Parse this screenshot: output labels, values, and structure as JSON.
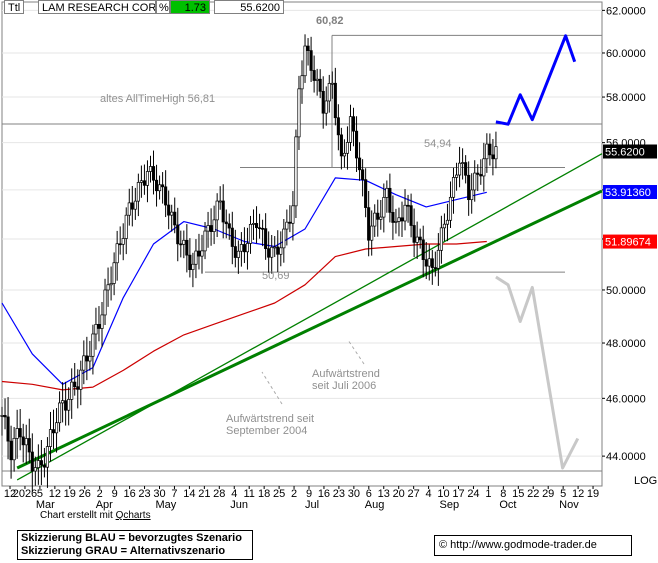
{
  "header": {
    "ticker": "Ttl",
    "name": "LAM RESEARCH CORP",
    "pct_symbol": "%",
    "pct_change": "1.73",
    "last_price": "55.6200"
  },
  "credit": {
    "prefix": "Chart erstellt mit ",
    "tool": "Qcharts"
  },
  "legend_box": {
    "line1": "Skizzierung BLAU = bevorzugtes Szenario",
    "line2": "Skizzierung GRAU = Alternativszenario"
  },
  "source": "© http://www.godmode-trader.de",
  "colors": {
    "accent_green": "#00c000",
    "blue": "#0000ff",
    "red": "#ff0000",
    "trend": "#008000",
    "grey": "#c8c8c8"
  },
  "chart_data": {
    "type": "candlestick",
    "y_axis": {
      "min": 43.0,
      "max": 62.4,
      "position": "right",
      "ticks": [
        "62.0000",
        "60.0000",
        "58.0000",
        "56.0000",
        "54.0000",
        "52.0000",
        "50.0000",
        "48.0000",
        "46.0000",
        "44.0000"
      ],
      "scale_label": "LOG"
    },
    "x_axis": {
      "day_labels": [
        "12",
        "2026",
        "5",
        "12",
        "19",
        "26",
        "2",
        "9",
        "16",
        "23",
        "30",
        "7",
        "14",
        "21",
        "28",
        "4",
        "11",
        "18",
        "25",
        "2",
        "9",
        "16",
        "23",
        "30",
        "6",
        "13",
        "20",
        "27",
        "4",
        "10",
        "17",
        "24",
        "1",
        "8",
        "15",
        "22",
        "29",
        "5",
        "12",
        "19"
      ],
      "month_labels": [
        {
          "label": "Mar",
          "at": "5"
        },
        {
          "label": "Apr",
          "at": "2"
        },
        {
          "label": "May",
          "at": "30"
        },
        {
          "label": "Jun",
          "at": "4"
        },
        {
          "label": "Jul",
          "at": "9"
        },
        {
          "label": "Aug",
          "at": "6"
        },
        {
          "label": "Sep",
          "at": "10"
        },
        {
          "label": "Oct",
          "at": "8"
        },
        {
          "label": "Nov",
          "at": "5"
        }
      ]
    },
    "price_labels": [
      {
        "text": "55.6200",
        "value": 55.62,
        "bg": "#000000",
        "fg": "#ffffff"
      },
      {
        "text": "53.91360",
        "value": 53.9136,
        "bg": "#0000ff",
        "fg": "#ffffff"
      },
      {
        "text": "51.89674",
        "value": 51.89674,
        "bg": "#ff0000",
        "fg": "#ffffff"
      }
    ],
    "annotations": [
      {
        "text": "60,82",
        "value": 60.82
      },
      {
        "text": "altes AllTimeHigh   56,81",
        "value": 56.81
      },
      {
        "text": "54,94",
        "value": 54.94
      },
      {
        "text": "50,69",
        "value": 50.69
      },
      {
        "text": "Aufwärtstrend",
        "line2": "seit Juli 2006"
      },
      {
        "text": "Aufwärtstrend seit",
        "line2": "September 2004"
      }
    ],
    "horizontal_levels": [
      60.82,
      56.81,
      54.94,
      50.69,
      43.5
    ],
    "trendlines": [
      {
        "name": "Aufwärtstrend seit Juli 2006",
        "from": [
          5,
          43.2
        ],
        "to": [
          168,
          53.4
        ]
      },
      {
        "name": "Aufwärtstrend seit September 2004",
        "from": [
          5,
          43.6
        ],
        "to": [
          168,
          52.2
        ]
      }
    ],
    "series": [
      {
        "kind": "sma_fast",
        "color": "#0000ff",
        "values": [
          [
            0,
            49.5
          ],
          [
            10,
            47.6
          ],
          [
            20,
            46.5
          ],
          [
            30,
            47.1
          ],
          [
            40,
            49.7
          ],
          [
            50,
            51.8
          ],
          [
            60,
            52.7
          ],
          [
            70,
            52.4
          ],
          [
            80,
            51.9
          ],
          [
            90,
            51.7
          ],
          [
            100,
            52.4
          ],
          [
            110,
            54.5
          ],
          [
            120,
            54.4
          ],
          [
            130,
            53.8
          ],
          [
            140,
            53.3
          ],
          [
            150,
            53.6
          ],
          [
            160,
            53.9
          ]
        ]
      },
      {
        "kind": "sma_slow",
        "color": "#cc0000",
        "values": [
          [
            0,
            46.6
          ],
          [
            10,
            46.5
          ],
          [
            20,
            46.3
          ],
          [
            30,
            46.4
          ],
          [
            40,
            47.0
          ],
          [
            50,
            47.7
          ],
          [
            60,
            48.3
          ],
          [
            70,
            48.7
          ],
          [
            80,
            49.1
          ],
          [
            90,
            49.5
          ],
          [
            100,
            50.2
          ],
          [
            110,
            51.3
          ],
          [
            120,
            51.6
          ],
          [
            130,
            51.7
          ],
          [
            140,
            51.8
          ],
          [
            150,
            51.8
          ],
          [
            160,
            51.9
          ]
        ]
      },
      {
        "kind": "close",
        "color": "#000000",
        "values": [
          [
            0,
            45.4
          ],
          [
            3,
            44.2
          ],
          [
            6,
            44.9
          ],
          [
            9,
            44.0
          ],
          [
            12,
            43.5
          ],
          [
            15,
            44.2
          ],
          [
            18,
            45.4
          ],
          [
            21,
            45.9
          ],
          [
            24,
            46.4
          ],
          [
            27,
            47.2
          ],
          [
            30,
            48.1
          ],
          [
            33,
            49.2
          ],
          [
            36,
            50.6
          ],
          [
            39,
            51.9
          ],
          [
            42,
            53.2
          ],
          [
            45,
            54.0
          ],
          [
            48,
            54.8
          ],
          [
            51,
            54.3
          ],
          [
            54,
            53.6
          ],
          [
            57,
            52.4
          ],
          [
            60,
            51.6
          ],
          [
            63,
            50.9
          ],
          [
            66,
            51.8
          ],
          [
            69,
            52.6
          ],
          [
            72,
            53.5
          ],
          [
            75,
            52.1
          ],
          [
            78,
            51.3
          ],
          [
            81,
            52.0
          ],
          [
            84,
            52.8
          ],
          [
            87,
            51.7
          ],
          [
            90,
            51.4
          ],
          [
            93,
            52.1
          ],
          [
            96,
            53.4
          ],
          [
            98,
            58.4
          ],
          [
            100,
            60.2
          ],
          [
            103,
            59.0
          ],
          [
            106,
            57.6
          ],
          [
            109,
            58.6
          ],
          [
            112,
            55.1
          ],
          [
            115,
            56.9
          ],
          [
            118,
            55.0
          ],
          [
            121,
            52.3
          ],
          [
            124,
            52.9
          ],
          [
            127,
            53.8
          ],
          [
            130,
            52.4
          ],
          [
            133,
            53.4
          ],
          [
            136,
            52.2
          ],
          [
            139,
            51.4
          ],
          [
            142,
            50.7
          ],
          [
            145,
            52.1
          ],
          [
            148,
            53.6
          ],
          [
            151,
            55.4
          ],
          [
            154,
            53.9
          ],
          [
            157,
            54.6
          ],
          [
            160,
            55.6
          ],
          [
            163,
            55.62
          ]
        ]
      },
      {
        "kind": "scenario_blue",
        "color": "#0000ff",
        "values": [
          [
            163,
            56.9
          ],
          [
            167,
            56.8
          ],
          [
            171,
            58.1
          ],
          [
            175,
            57.0
          ],
          [
            186,
            60.8
          ],
          [
            189,
            59.6
          ]
        ]
      },
      {
        "kind": "scenario_grey",
        "color": "#c8c8c8",
        "values": [
          [
            163,
            50.5
          ],
          [
            167,
            50.2
          ],
          [
            171,
            48.8
          ],
          [
            175,
            50.1
          ],
          [
            185,
            43.6
          ],
          [
            190,
            44.6
          ]
        ]
      }
    ]
  }
}
